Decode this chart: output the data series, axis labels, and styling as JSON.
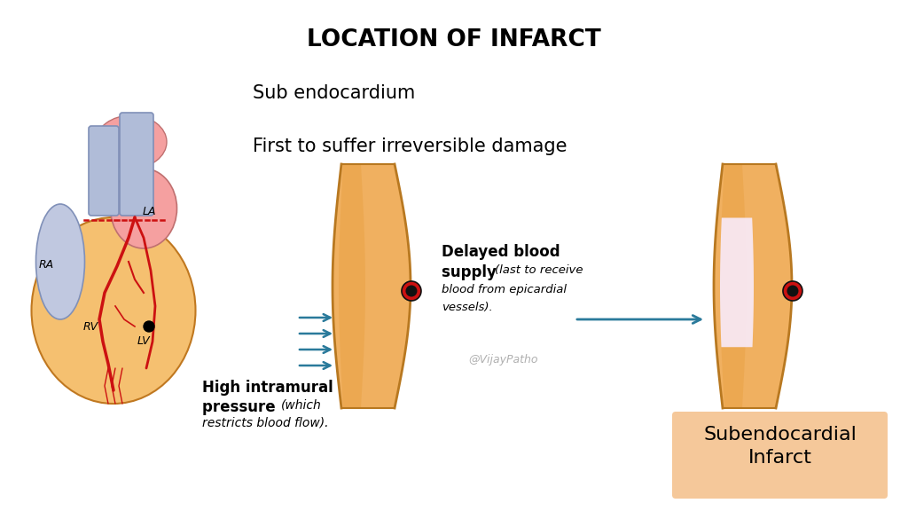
{
  "title": "LOCATION OF INFARCT",
  "title_fontsize": 19,
  "bg_color": "#ffffff",
  "text1": "Sub endocardium",
  "text2": "First to suffer irreversible damage",
  "text_fontsize": 15,
  "arrow_color": "#2a7a9b",
  "watermark": "@VijayPatho",
  "watermark_color": "#b0b0b0",
  "subendo_box_color": "#f5c89a",
  "subendo_text": "Subendocardial\nInfarct",
  "wall_outer_color": "#b87820",
  "wall_fill": "#f0b060",
  "wall_fill2": "#e8a040",
  "infarct_fill": "#f8eaf8",
  "vessel_red": "#cc1111",
  "vessel_black": "#111111",
  "heart_body_color": "#f5c070",
  "heart_body_edge": "#c07820",
  "heart_la_color": "#f5a0a0",
  "heart_ra_color": "#c0c8e0",
  "heart_vessel_color": "#b0bcd8",
  "heart_red": "#cc1111"
}
